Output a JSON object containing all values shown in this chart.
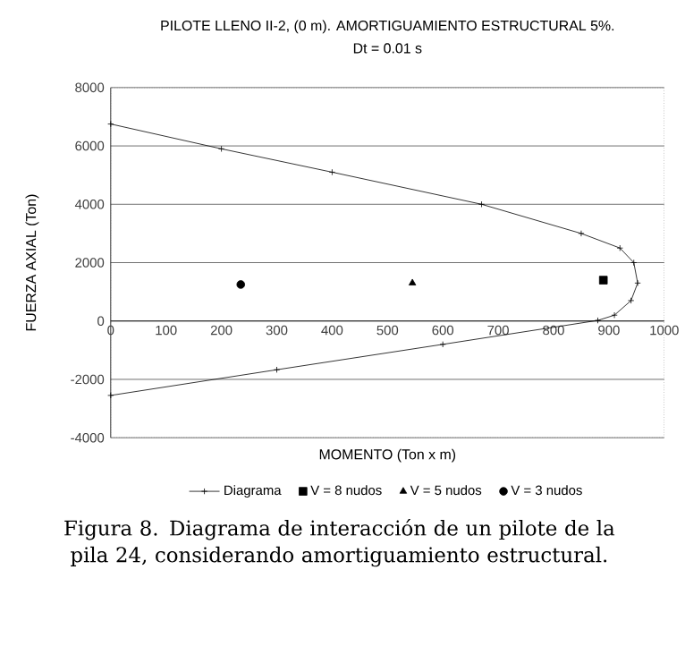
{
  "chart_data": {
    "type": "line",
    "title": "PILOTE LLENO II-2, (0 m). AMORTIGUAMIENTO ESTRUCTURAL 5%.",
    "subtitle": "Dt = 0.01 s",
    "xlabel": "MOMENTO (Ton x m)",
    "ylabel": "FUERZA AXIAL (Ton)",
    "annotations": [
      "Figura 8. Diagrama de interacción de un pilote de la pila 24, considerando amortiguamiento estructural."
    ],
    "xlim": [
      0,
      1000
    ],
    "ylim": [
      -4000,
      8000
    ],
    "xticks": [
      0,
      100,
      200,
      300,
      400,
      500,
      600,
      700,
      800,
      900,
      1000
    ],
    "yticks": [
      -4000,
      -2000,
      0,
      2000,
      4000,
      6000,
      8000
    ],
    "grid": "y",
    "legend": "bottom",
    "series": [
      {
        "name": "Diagrama",
        "color": "#000000",
        "marker": "cross",
        "x": [
          0,
          200,
          400,
          670,
          850,
          920,
          945,
          952,
          940,
          910,
          880,
          600,
          300,
          0
        ],
        "values": [
          6750,
          5900,
          5100,
          4000,
          3000,
          2500,
          2000,
          1300,
          700,
          200,
          20,
          -800,
          -1670,
          -2550
        ]
      },
      {
        "name": "V = 8 nudos",
        "type": "scatter",
        "color": "#000000",
        "marker": "square",
        "x": [
          890
        ],
        "values": [
          1400
        ]
      },
      {
        "name": "V = 5 nudos",
        "type": "scatter",
        "color": "#000000",
        "marker": "triangle",
        "x": [
          545
        ],
        "values": [
          1300
        ]
      },
      {
        "name": "V = 3 nudos",
        "type": "scatter",
        "color": "#000000",
        "marker": "circle",
        "x": [
          235
        ],
        "values": [
          1250
        ]
      }
    ]
  }
}
